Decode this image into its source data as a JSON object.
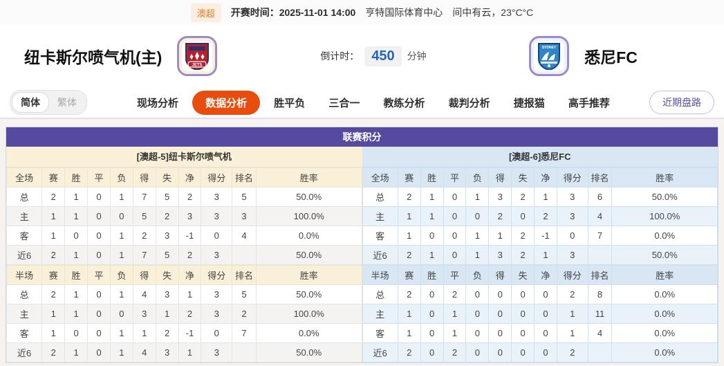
{
  "top_bar": {
    "league_badge": "澳超",
    "kickoff": "开赛时间：2025-11-01 14:00",
    "venue": "亨特国际体育中心",
    "weather": "间中有云，23°C°C"
  },
  "header": {
    "home_team": "纽卡斯尔喷气机(主)",
    "away_team": "悉尼FC",
    "home_logo_text": "JETS",
    "away_logo_text": "SYDNEY",
    "countdown_label": "倒计时：",
    "countdown_value": "450",
    "countdown_unit": "分钟"
  },
  "nav": {
    "lang_simplified": "简体",
    "lang_traditional": "繁体",
    "tabs": [
      "现场分析",
      "数据分析",
      "胜平负",
      "三合一",
      "教练分析",
      "裁判分析",
      "捷报猫",
      "高手推荐"
    ],
    "active_tab": "数据分析",
    "recent_button": "近期盘路"
  },
  "table": {
    "title": "联赛积分",
    "full_columns": [
      "全场",
      "赛",
      "胜",
      "平",
      "负",
      "得",
      "失",
      "净",
      "得分",
      "排名",
      "胜率"
    ],
    "half_columns": [
      "半场",
      "赛",
      "胜",
      "平",
      "负",
      "得",
      "失",
      "净",
      "得分",
      "排名",
      "胜率"
    ],
    "home": {
      "header": "[澳超-5]纽卡斯尔喷气机",
      "full_rows": [
        {
          "label": "总",
          "type": "total",
          "values": [
            "2",
            "1",
            "0",
            "1",
            "7",
            "5",
            "2",
            "3",
            "5",
            "50.0%"
          ]
        },
        {
          "label": "主",
          "type": "home",
          "values": [
            "1",
            "1",
            "0",
            "0",
            "5",
            "2",
            "3",
            "3",
            "3",
            "100.0%"
          ]
        },
        {
          "label": "客",
          "type": "away",
          "values": [
            "1",
            "0",
            "0",
            "1",
            "2",
            "3",
            "-1",
            "0",
            "4",
            "0.0%"
          ]
        },
        {
          "label": "近6",
          "type": "recent",
          "values": [
            "2",
            "1",
            "0",
            "1",
            "7",
            "5",
            "2",
            "3",
            "",
            "50.0%"
          ]
        }
      ],
      "half_rows": [
        {
          "label": "总",
          "type": "total",
          "values": [
            "2",
            "1",
            "0",
            "1",
            "4",
            "3",
            "1",
            "3",
            "5",
            "50.0%"
          ]
        },
        {
          "label": "主",
          "type": "home",
          "values": [
            "1",
            "1",
            "0",
            "0",
            "3",
            "1",
            "2",
            "3",
            "2",
            "100.0%"
          ]
        },
        {
          "label": "客",
          "type": "away",
          "values": [
            "1",
            "0",
            "0",
            "1",
            "1",
            "2",
            "-1",
            "0",
            "7",
            "0.0%"
          ]
        },
        {
          "label": "近6",
          "type": "recent",
          "values": [
            "2",
            "1",
            "0",
            "1",
            "4",
            "3",
            "1",
            "3",
            "",
            "50.0%"
          ]
        }
      ]
    },
    "away": {
      "header": "[澳超-6]悉尼FC",
      "full_rows": [
        {
          "label": "总",
          "type": "total",
          "values": [
            "2",
            "1",
            "0",
            "1",
            "3",
            "2",
            "1",
            "3",
            "6",
            "50.0%"
          ]
        },
        {
          "label": "主",
          "type": "home",
          "values": [
            "1",
            "1",
            "0",
            "0",
            "2",
            "0",
            "2",
            "3",
            "4",
            "100.0%"
          ]
        },
        {
          "label": "客",
          "type": "away",
          "values": [
            "1",
            "0",
            "0",
            "1",
            "1",
            "2",
            "-1",
            "0",
            "7",
            "0.0%"
          ]
        },
        {
          "label": "近6",
          "type": "recent",
          "values": [
            "2",
            "1",
            "0",
            "1",
            "3",
            "2",
            "1",
            "3",
            "",
            "50.0%"
          ]
        }
      ],
      "half_rows": [
        {
          "label": "总",
          "type": "total",
          "values": [
            "2",
            "0",
            "2",
            "0",
            "0",
            "0",
            "0",
            "2",
            "8",
            "0.0%"
          ]
        },
        {
          "label": "主",
          "type": "home",
          "values": [
            "1",
            "0",
            "1",
            "0",
            "0",
            "0",
            "0",
            "1",
            "11",
            "0.0%"
          ]
        },
        {
          "label": "客",
          "type": "away",
          "values": [
            "1",
            "0",
            "1",
            "0",
            "0",
            "0",
            "0",
            "1",
            "4",
            "0.0%"
          ]
        },
        {
          "label": "近6",
          "type": "recent",
          "values": [
            "2",
            "0",
            "2",
            "0",
            "0",
            "0",
            "0",
            "2",
            "",
            "0.0%"
          ]
        }
      ]
    }
  },
  "colors": {
    "panel_purple": "#554a9e",
    "active_tab_orange": "#e94d0e",
    "home_theme_cream": "#faf0d8",
    "away_theme_blue": "#d9e7f4",
    "home_row_label_red": "#cc2b2b",
    "away_row_label_blue": "#2b3cc4",
    "countdown_blue": "#2463be",
    "recent_button_purple": "#5b4ea0"
  }
}
